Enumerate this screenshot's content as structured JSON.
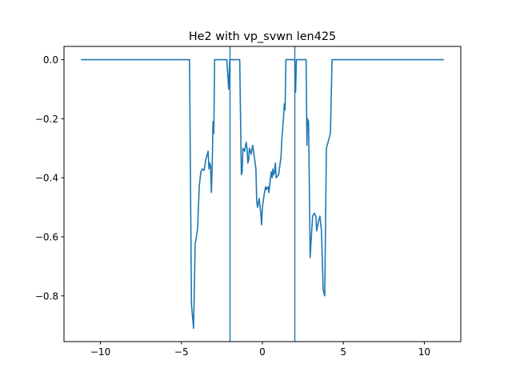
{
  "chart_data": {
    "type": "line",
    "title": "He2 with vp_svwn len425",
    "xlabel": "",
    "ylabel": "",
    "xlim": [
      -12.25,
      12.25
    ],
    "ylim": [
      -0.955,
      0.045
    ],
    "xticks": [
      -10,
      -5,
      0,
      5,
      10
    ],
    "xtick_labels": [
      "−10",
      "−5",
      "0",
      "5",
      "10"
    ],
    "yticks": [
      0.0,
      -0.2,
      -0.4,
      -0.6,
      -0.8
    ],
    "ytick_labels": [
      "0.0",
      "−0.2",
      "−0.4",
      "−0.6",
      "−0.8"
    ],
    "grid": false,
    "legend": "none",
    "line_color": "#1f77b4",
    "vlines": [
      -2.0,
      2.0
    ],
    "series": [
      {
        "points": [
          [
            -11.2,
            0.0
          ],
          [
            -4.5,
            0.0
          ],
          [
            -4.38,
            -0.83
          ],
          [
            -4.25,
            -0.91
          ],
          [
            -4.15,
            -0.62
          ],
          [
            -4.1,
            -0.61
          ],
          [
            -4.0,
            -0.57
          ],
          [
            -3.9,
            -0.43
          ],
          [
            -3.8,
            -0.38
          ],
          [
            -3.7,
            -0.37
          ],
          [
            -3.6,
            -0.375
          ],
          [
            -3.5,
            -0.34
          ],
          [
            -3.4,
            -0.32
          ],
          [
            -3.35,
            -0.31
          ],
          [
            -3.3,
            -0.37
          ],
          [
            -3.25,
            -0.35
          ],
          [
            -3.2,
            -0.36
          ],
          [
            -3.15,
            -0.45
          ],
          [
            -3.1,
            -0.36
          ],
          [
            -3.05,
            -0.21
          ],
          [
            -3.0,
            -0.25
          ],
          [
            -2.95,
            0.0
          ],
          [
            -2.2,
            0.0
          ],
          [
            -2.08,
            -0.1
          ],
          [
            -2.02,
            0.0
          ],
          [
            -1.4,
            0.0
          ],
          [
            -1.3,
            -0.39
          ],
          [
            -1.25,
            -0.38
          ],
          [
            -1.2,
            -0.3
          ],
          [
            -1.1,
            -0.31
          ],
          [
            -1.0,
            -0.28
          ],
          [
            -0.95,
            -0.3
          ],
          [
            -0.9,
            -0.35
          ],
          [
            -0.85,
            -0.34
          ],
          [
            -0.8,
            -0.3
          ],
          [
            -0.7,
            -0.32
          ],
          [
            -0.6,
            -0.29
          ],
          [
            -0.5,
            -0.33
          ],
          [
            -0.4,
            -0.37
          ],
          [
            -0.35,
            -0.48
          ],
          [
            -0.3,
            -0.5
          ],
          [
            -0.2,
            -0.47
          ],
          [
            -0.1,
            -0.52
          ],
          [
            -0.05,
            -0.56
          ],
          [
            0.0,
            -0.5
          ],
          [
            0.1,
            -0.46
          ],
          [
            0.2,
            -0.43
          ],
          [
            0.25,
            -0.44
          ],
          [
            0.35,
            -0.43
          ],
          [
            0.4,
            -0.45
          ],
          [
            0.5,
            -0.4
          ],
          [
            0.55,
            -0.38
          ],
          [
            0.6,
            -0.4
          ],
          [
            0.65,
            -0.37
          ],
          [
            0.7,
            -0.39
          ],
          [
            0.75,
            -0.38
          ],
          [
            0.8,
            -0.35
          ],
          [
            0.85,
            -0.4
          ],
          [
            1.0,
            -0.39
          ],
          [
            1.1,
            -0.35
          ],
          [
            1.15,
            -0.33
          ],
          [
            1.2,
            -0.27
          ],
          [
            1.3,
            -0.2
          ],
          [
            1.35,
            -0.15
          ],
          [
            1.4,
            -0.17
          ],
          [
            1.45,
            0.0
          ],
          [
            2.0,
            0.0
          ],
          [
            2.05,
            -0.11
          ],
          [
            2.1,
            0.0
          ],
          [
            2.7,
            0.0
          ],
          [
            2.75,
            -0.29
          ],
          [
            2.78,
            -0.2
          ],
          [
            2.85,
            -0.21
          ],
          [
            2.95,
            -0.67
          ],
          [
            3.0,
            -0.62
          ],
          [
            3.1,
            -0.53
          ],
          [
            3.2,
            -0.52
          ],
          [
            3.3,
            -0.53
          ],
          [
            3.35,
            -0.58
          ],
          [
            3.45,
            -0.55
          ],
          [
            3.55,
            -0.53
          ],
          [
            3.65,
            -0.58
          ],
          [
            3.75,
            -0.78
          ],
          [
            3.85,
            -0.8
          ],
          [
            3.95,
            -0.3
          ],
          [
            4.2,
            -0.25
          ],
          [
            4.3,
            0.0
          ],
          [
            11.2,
            0.0
          ]
        ]
      }
    ]
  }
}
